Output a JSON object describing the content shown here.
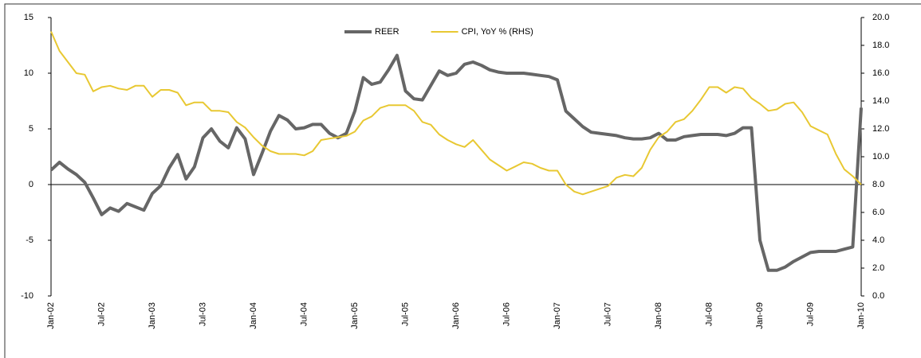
{
  "chart_data": {
    "type": "line",
    "categories": [
      "Jan-02",
      null,
      null,
      null,
      null,
      null,
      "Jul-02",
      null,
      null,
      null,
      null,
      null,
      "Jan-03",
      null,
      null,
      null,
      null,
      null,
      "Jul-03",
      null,
      null,
      null,
      null,
      null,
      "Jan-04",
      null,
      null,
      null,
      null,
      null,
      "Jul-04",
      null,
      null,
      null,
      null,
      null,
      "Jan-05",
      null,
      null,
      null,
      null,
      null,
      "Jul-05",
      null,
      null,
      null,
      null,
      null,
      "Jan-06",
      null,
      null,
      null,
      null,
      null,
      "Jul-06",
      null,
      null,
      null,
      null,
      null,
      "Jan-07",
      null,
      null,
      null,
      null,
      null,
      "Jul-07",
      null,
      null,
      null,
      null,
      null,
      "Jan-08",
      null,
      null,
      null,
      null,
      null,
      "Jul-08",
      null,
      null,
      null,
      null,
      null,
      "Jan-09",
      null,
      null,
      null,
      null,
      null,
      "Jul-09",
      null,
      null,
      null,
      null,
      null,
      "Jan-10"
    ],
    "series": [
      {
        "name": "REER",
        "color": "#666666",
        "values": [
          1.3,
          2.0,
          1.4,
          0.9,
          0.2,
          -1.2,
          -2.7,
          -2.1,
          -2.4,
          -1.7,
          -2.0,
          -2.3,
          -0.8,
          -0.1,
          1.5,
          2.7,
          0.5,
          1.6,
          4.2,
          5.0,
          3.9,
          3.3,
          5.1,
          4.1,
          0.9,
          2.8,
          4.8,
          6.2,
          5.8,
          5.0,
          5.1,
          5.4,
          5.4,
          4.6,
          4.2,
          4.6,
          6.6,
          9.6,
          9.0,
          9.2,
          10.3,
          11.6,
          8.4,
          7.7,
          7.6,
          8.9,
          10.2,
          9.8,
          10.0,
          10.8,
          11.0,
          10.7,
          10.3,
          10.1,
          10.0,
          10.0,
          10.0,
          9.9,
          9.8,
          9.7,
          9.4,
          6.6,
          5.9,
          5.2,
          4.7,
          4.6,
          4.5,
          4.4,
          4.2,
          4.1,
          4.1,
          4.2,
          4.6,
          4.0,
          4.0,
          4.3,
          4.4,
          4.5,
          4.5,
          4.5,
          4.4,
          4.6,
          5.1,
          5.1,
          -5.0,
          -7.7,
          -7.7,
          -7.4,
          -6.9,
          -6.5,
          -6.1,
          -6.0,
          -6.0,
          -6.0,
          -5.8,
          -5.6,
          6.9
        ]
      },
      {
        "name": "CPI, YoY % (RHS)",
        "color": "#e8c832",
        "axis": "y2",
        "values": [
          19.0,
          17.6,
          16.8,
          16.0,
          15.9,
          14.7,
          15.0,
          15.1,
          14.9,
          14.8,
          15.1,
          15.1,
          14.3,
          14.8,
          14.8,
          14.6,
          13.7,
          13.9,
          13.9,
          13.3,
          13.3,
          13.2,
          12.5,
          12.1,
          11.4,
          10.8,
          10.4,
          10.2,
          10.2,
          10.2,
          10.1,
          10.4,
          11.2,
          11.3,
          11.4,
          11.5,
          11.8,
          12.6,
          12.9,
          13.5,
          13.7,
          13.7,
          13.7,
          13.3,
          12.5,
          12.3,
          11.6,
          11.2,
          10.9,
          10.7,
          11.2,
          10.5,
          9.8,
          9.4,
          9.0,
          9.3,
          9.6,
          9.5,
          9.2,
          9.0,
          9.0,
          8.0,
          7.5,
          7.3,
          7.5,
          7.7,
          7.9,
          8.5,
          8.7,
          8.6,
          9.2,
          10.5,
          11.4,
          11.8,
          12.5,
          12.7,
          13.3,
          14.1,
          15.0,
          15.0,
          14.6,
          15.0,
          14.9,
          14.2,
          13.8,
          13.3,
          13.4,
          13.8,
          13.9,
          13.2,
          12.2,
          11.9,
          11.6,
          10.2,
          9.1,
          8.6,
          8.0
        ]
      }
    ],
    "ylim": [
      -10,
      15
    ],
    "yticks": [
      -10,
      -5,
      0,
      5,
      10,
      15
    ],
    "y2lim": [
      0,
      20
    ],
    "y2ticks": [
      {
        "value": 0,
        "label": "0.0"
      },
      {
        "value": 2,
        "label": "2.0"
      },
      {
        "value": 4,
        "label": "4.0"
      },
      {
        "value": 6,
        "label": "6.0"
      },
      {
        "value": 8,
        "label": "8.0"
      },
      {
        "value": 10,
        "label": "10.0"
      },
      {
        "value": 12,
        "label": "12.0"
      },
      {
        "value": 14,
        "label": "14.0"
      },
      {
        "value": 16,
        "label": "16.0"
      },
      {
        "value": 18,
        "label": "18.0"
      },
      {
        "value": 20,
        "label": "20.0"
      }
    ],
    "legend": "top",
    "grid": false
  }
}
